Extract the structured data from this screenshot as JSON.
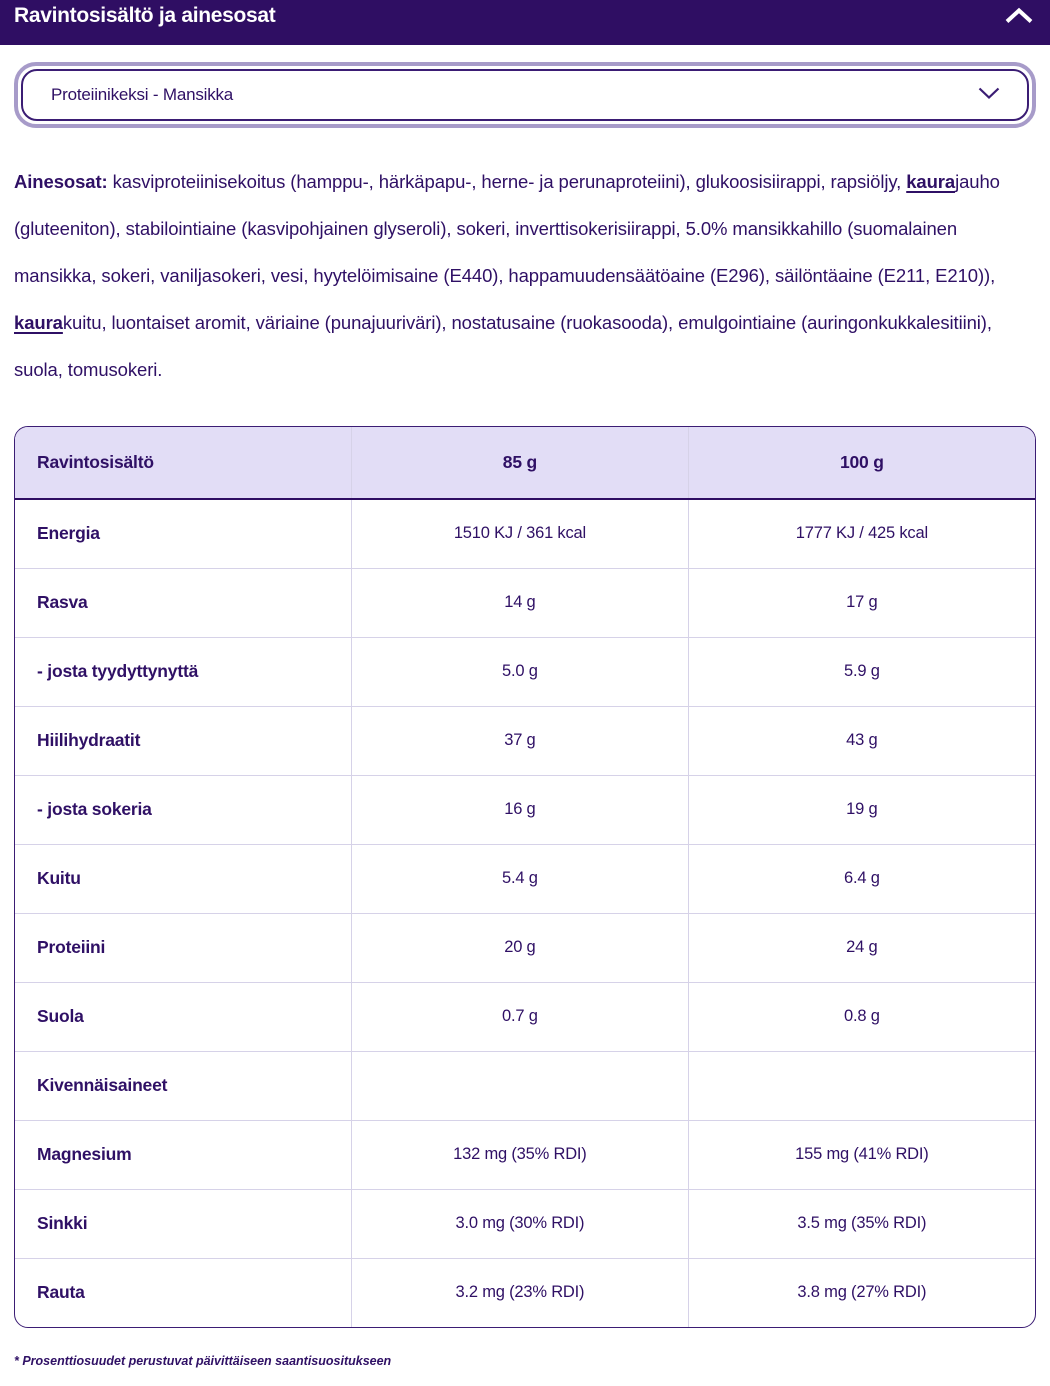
{
  "colors": {
    "brand_purple": "#2F0E63",
    "text_purple": "#2F1065",
    "select_outer_border": "#A79BC9",
    "table_header_bg": "#E2DDF6",
    "grid_line": "#D6D2E8",
    "table_border": "#3B1D74"
  },
  "accordion": {
    "title": "Ravintosisältö ja ainesosat",
    "state_icon": "chevron-up"
  },
  "product_select": {
    "value": "Proteiinikeksi - Mansikka",
    "icon": "chevron-down"
  },
  "ingredients": {
    "segments": [
      {
        "text": "Ainesosat: ",
        "style": "bold"
      },
      {
        "text": "kasviproteiinisekoitus (hamppu-, härkäpapu-, herne- ja perunaproteiini), glukoosisiirappi, rapsiöljy, ",
        "style": "normal"
      },
      {
        "text": "kaura",
        "style": "bold-underline"
      },
      {
        "text": "jauho (gluteeniton), stabilointiaine (kasvipohjainen glyseroli), sokeri, inverttisokerisiirappi, 5.0% mansikkahillo (suomalainen mansikka, sokeri, vaniljasokeri, vesi, hyytelöimisaine (E440), happamuudensäätöaine (E296), säilöntäaine (E211, E210)), ",
        "style": "normal"
      },
      {
        "text": "kaura",
        "style": "bold-underline"
      },
      {
        "text": "kuitu, luontaiset aromit, väriaine (punajuuriväri), nostatusaine (ruokasooda), emulgointiaine (auringonkukkalesitiini), suola, tomusokeri.",
        "style": "normal"
      }
    ]
  },
  "nutrition_table": {
    "headers": [
      "Ravintosisältö",
      "85 g",
      "100 g"
    ],
    "rows": [
      {
        "label": "Energia",
        "per_85g": "1510 KJ / 361 kcal",
        "per_100g": "1777 KJ / 425 kcal"
      },
      {
        "label": "Rasva",
        "per_85g": "14 g",
        "per_100g": "17 g"
      },
      {
        "label": "- josta tyydyttynyttä",
        "per_85g": "5.0 g",
        "per_100g": "5.9 g"
      },
      {
        "label": "Hiilihydraatit",
        "per_85g": "37 g",
        "per_100g": "43 g"
      },
      {
        "label": "- josta sokeria",
        "per_85g": "16 g",
        "per_100g": "19 g"
      },
      {
        "label": "Kuitu",
        "per_85g": "5.4 g",
        "per_100g": "6.4 g"
      },
      {
        "label": "Proteiini",
        "per_85g": "20 g",
        "per_100g": "24 g"
      },
      {
        "label": "Suola",
        "per_85g": "0.7 g",
        "per_100g": "0.8 g"
      },
      {
        "label": "Kivennäisaineet",
        "per_85g": "",
        "per_100g": ""
      },
      {
        "label": "Magnesium",
        "per_85g": "132 mg (35% RDI)",
        "per_100g": "155 mg (41% RDI)"
      },
      {
        "label": "Sinkki",
        "per_85g": "3.0 mg (30% RDI)",
        "per_100g": "3.5 mg (35% RDI)"
      },
      {
        "label": "Rauta",
        "per_85g": "3.2 mg (23% RDI)",
        "per_100g": "3.8 mg (27% RDI)"
      }
    ]
  },
  "footnote": "* Prosenttiosuudet perustuvat päivittäiseen saantisuositukseen"
}
